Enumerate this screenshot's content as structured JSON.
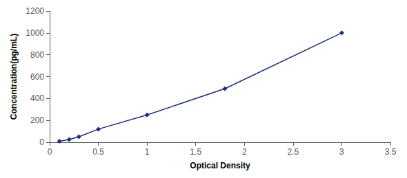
{
  "chart_data": {
    "type": "line",
    "x": [
      0.1,
      0.2,
      0.3,
      0.5,
      1.0,
      1.8,
      3.0
    ],
    "values": [
      10,
      25,
      50,
      120,
      250,
      490,
      1000
    ],
    "color": "#1A2F7A",
    "marker": "diamond",
    "xlabel": "Optical Density",
    "ylabel": "Concentration(pg/mL)",
    "xlim": [
      0,
      3.5
    ],
    "ylim": [
      0,
      1200
    ],
    "xticks": [
      0,
      0.5,
      1,
      1.5,
      2,
      2.5,
      3,
      3.5
    ],
    "yticks": [
      0,
      200,
      400,
      600,
      800,
      1000,
      1200
    ],
    "grid": false
  }
}
